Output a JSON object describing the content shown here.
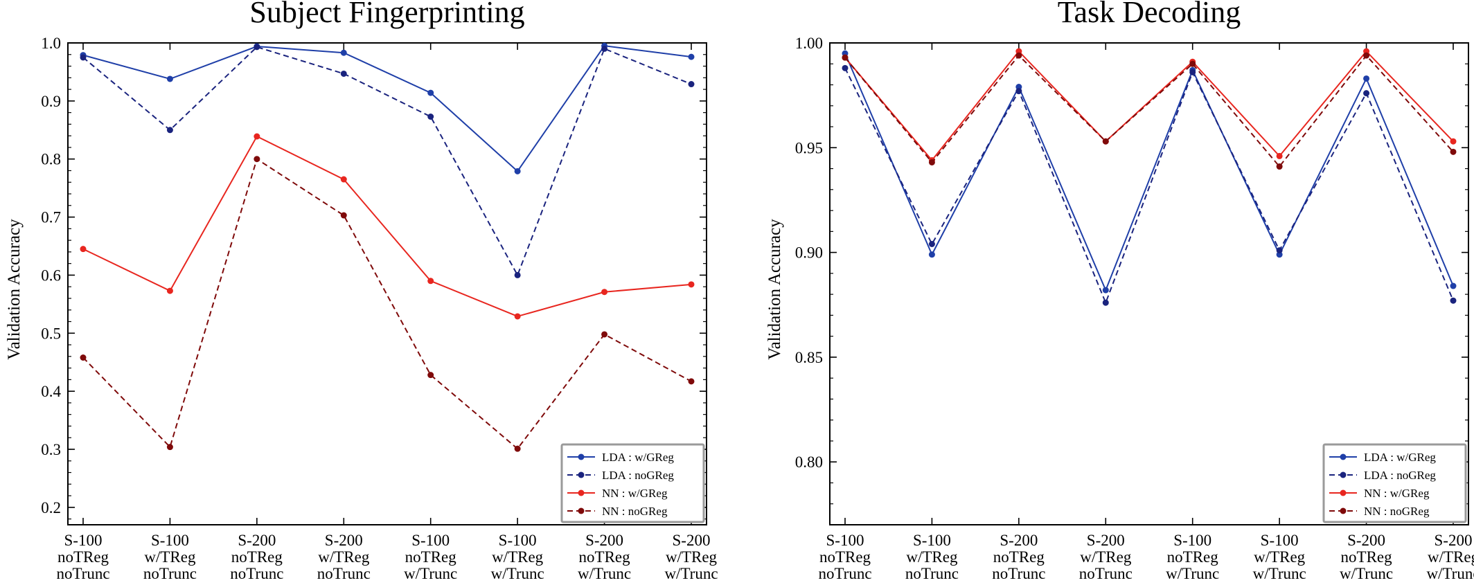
{
  "chart_data": [
    {
      "type": "line",
      "title": "Subject Fingerprinting",
      "ylabel": "Validation Accuracy",
      "xlabel": "",
      "ylim": [
        0.17,
        1.0
      ],
      "yticks": [
        "0.2",
        "0.3",
        "0.4",
        "0.5",
        "0.6",
        "0.7",
        "0.8",
        "0.9",
        "1.0"
      ],
      "ytick_values": [
        0.2,
        0.3,
        0.4,
        0.5,
        0.6,
        0.7,
        0.8,
        0.9,
        1.0
      ],
      "categories": [
        [
          "S-100",
          "noTReg",
          "noTrunc"
        ],
        [
          "S-100",
          "w/TReg",
          "noTrunc"
        ],
        [
          "S-200",
          "noTReg",
          "noTrunc"
        ],
        [
          "S-200",
          "w/TReg",
          "noTrunc"
        ],
        [
          "S-100",
          "noTReg",
          "w/Trunc"
        ],
        [
          "S-100",
          "w/TReg",
          "w/Trunc"
        ],
        [
          "S-200",
          "noTReg",
          "w/Trunc"
        ],
        [
          "S-200",
          "w/TReg",
          "w/Trunc"
        ]
      ],
      "legend_position": "lower-right",
      "series": [
        {
          "name": "LDA : w/GReg",
          "color": "#1f3fa8",
          "dash": "solid",
          "values": [
            0.979,
            0.938,
            0.994,
            0.983,
            0.914,
            0.779,
            0.995,
            0.976
          ]
        },
        {
          "name": "LDA : noGReg",
          "color": "#1a237e",
          "dash": "dashed",
          "values": [
            0.975,
            0.85,
            0.993,
            0.947,
            0.873,
            0.6,
            0.99,
            0.929
          ]
        },
        {
          "name": "NN : w/GReg",
          "color": "#e8261f",
          "dash": "solid",
          "values": [
            0.645,
            0.573,
            0.839,
            0.765,
            0.59,
            0.529,
            0.571,
            0.584
          ]
        },
        {
          "name": "NN : noGReg",
          "color": "#7f0a0a",
          "dash": "dashed",
          "values": [
            0.458,
            0.304,
            0.8,
            0.703,
            0.428,
            0.301,
            0.498,
            0.417
          ]
        }
      ]
    },
    {
      "type": "line",
      "title": "Task Decoding",
      "ylabel": "Validation Accuracy",
      "xlabel": "",
      "ylim": [
        0.77,
        1.0
      ],
      "yticks": [
        "0.80",
        "0.85",
        "0.90",
        "0.95",
        "1.00"
      ],
      "ytick_values": [
        0.8,
        0.85,
        0.9,
        0.95,
        1.0
      ],
      "categories": [
        [
          "S-100",
          "noTReg",
          "noTrunc"
        ],
        [
          "S-100",
          "w/TReg",
          "noTrunc"
        ],
        [
          "S-200",
          "noTReg",
          "noTrunc"
        ],
        [
          "S-200",
          "w/TReg",
          "noTrunc"
        ],
        [
          "S-100",
          "noTReg",
          "w/Trunc"
        ],
        [
          "S-100",
          "w/TReg",
          "w/Trunc"
        ],
        [
          "S-200",
          "noTReg",
          "w/Trunc"
        ],
        [
          "S-200",
          "w/TReg",
          "w/Trunc"
        ]
      ],
      "legend_position": "lower-right",
      "series": [
        {
          "name": "LDA : w/GReg",
          "color": "#1f3fa8",
          "dash": "solid",
          "values": [
            0.995,
            0.899,
            0.979,
            0.882,
            0.987,
            0.899,
            0.983,
            0.884
          ]
        },
        {
          "name": "LDA : noGReg",
          "color": "#1a237e",
          "dash": "dashed",
          "values": [
            0.988,
            0.904,
            0.977,
            0.876,
            0.986,
            0.901,
            0.976,
            0.877
          ]
        },
        {
          "name": "NN : w/GReg",
          "color": "#e8261f",
          "dash": "solid",
          "values": [
            0.993,
            0.944,
            0.996,
            0.953,
            0.991,
            0.946,
            0.996,
            0.953
          ]
        },
        {
          "name": "NN : noGReg",
          "color": "#7f0a0a",
          "dash": "dashed",
          "values": [
            0.993,
            0.943,
            0.994,
            0.953,
            0.99,
            0.941,
            0.994,
            0.948
          ]
        }
      ]
    }
  ]
}
